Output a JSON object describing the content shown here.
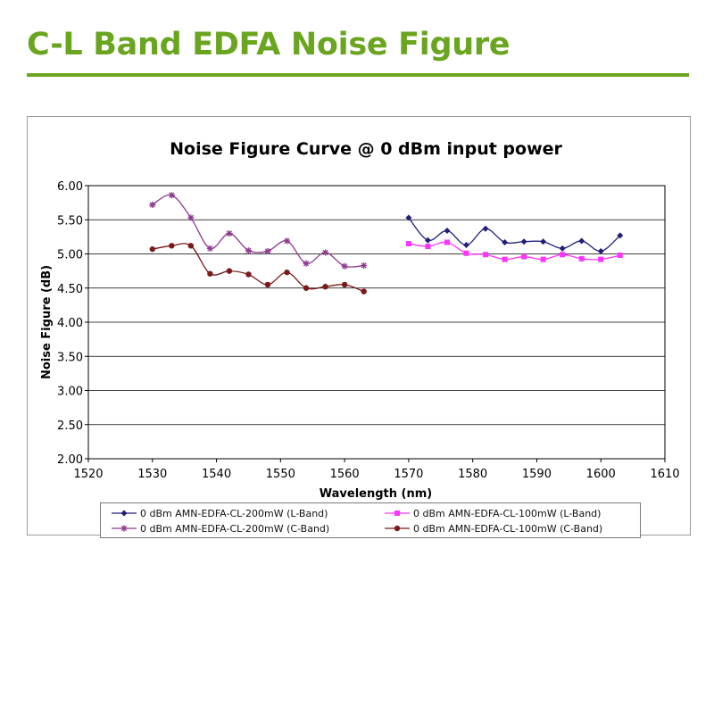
{
  "header": {
    "title": "C-L Band EDFA Noise Figure"
  },
  "chart_data": {
    "type": "line",
    "title": "Noise Figure Curve @ 0 dBm input power",
    "xlabel": "Wavelength (nm)",
    "ylabel": "Noise Figure (dB)",
    "xlim": [
      1520,
      1610
    ],
    "ylim": [
      2.0,
      6.0
    ],
    "xticks": [
      1520,
      1530,
      1540,
      1550,
      1560,
      1570,
      1580,
      1590,
      1600,
      1610
    ],
    "xtick_labels": [
      "1520",
      "1530",
      "1540",
      "1550",
      "1560",
      "1570",
      "1580",
      "1590",
      "1600",
      "1610"
    ],
    "yticks": [
      2.0,
      2.5,
      3.0,
      3.5,
      4.0,
      4.5,
      5.0,
      5.5,
      6.0
    ],
    "ytick_labels": [
      "2.00",
      "2.50",
      "3.00",
      "3.50",
      "4.00",
      "4.50",
      "5.00",
      "5.50",
      "6.00"
    ],
    "grid": "horizontal",
    "legend_position": "bottom",
    "series": [
      {
        "name": "0 dBm AMN-EDFA-CL-200mW (L-Band)",
        "color": "#1f1f7a",
        "marker": "diamond",
        "x": [
          1570,
          1573,
          1576,
          1579,
          1582,
          1585,
          1588,
          1591,
          1594,
          1597,
          1600,
          1603
        ],
        "y": [
          5.53,
          5.2,
          5.34,
          5.13,
          5.37,
          5.17,
          5.18,
          5.18,
          5.08,
          5.19,
          5.04,
          5.27
        ]
      },
      {
        "name": "0 dBm AMN-EDFA-CL-100mW (L-Band)",
        "color": "#ff33ff",
        "marker": "square",
        "x": [
          1570,
          1573,
          1576,
          1579,
          1582,
          1585,
          1588,
          1591,
          1594,
          1597,
          1600,
          1603
        ],
        "y": [
          5.15,
          5.11,
          5.17,
          5.01,
          4.99,
          4.92,
          4.96,
          4.92,
          4.99,
          4.93,
          4.92,
          4.98
        ]
      },
      {
        "name": "0 dBm AMN-EDFA-CL-200mW (C-Band)",
        "color": "#8e3b8e",
        "marker": "star",
        "x": [
          1530,
          1533,
          1536,
          1539,
          1542,
          1545,
          1548,
          1551,
          1554,
          1557,
          1560,
          1563
        ],
        "y": [
          5.72,
          5.86,
          5.53,
          5.08,
          5.3,
          5.05,
          5.04,
          5.19,
          4.86,
          5.02,
          4.82,
          4.83
        ]
      },
      {
        "name": "0 dBm AMN-EDFA-CL-100mW (C-Band)",
        "color": "#7a1a1a",
        "marker": "circle",
        "x": [
          1530,
          1533,
          1536,
          1539,
          1542,
          1545,
          1548,
          1551,
          1554,
          1557,
          1560,
          1563
        ],
        "y": [
          5.07,
          5.12,
          5.12,
          4.71,
          4.75,
          4.7,
          4.55,
          4.73,
          4.5,
          4.52,
          4.55,
          4.45
        ]
      }
    ],
    "legend_order": [
      0,
      1,
      2,
      3
    ]
  }
}
